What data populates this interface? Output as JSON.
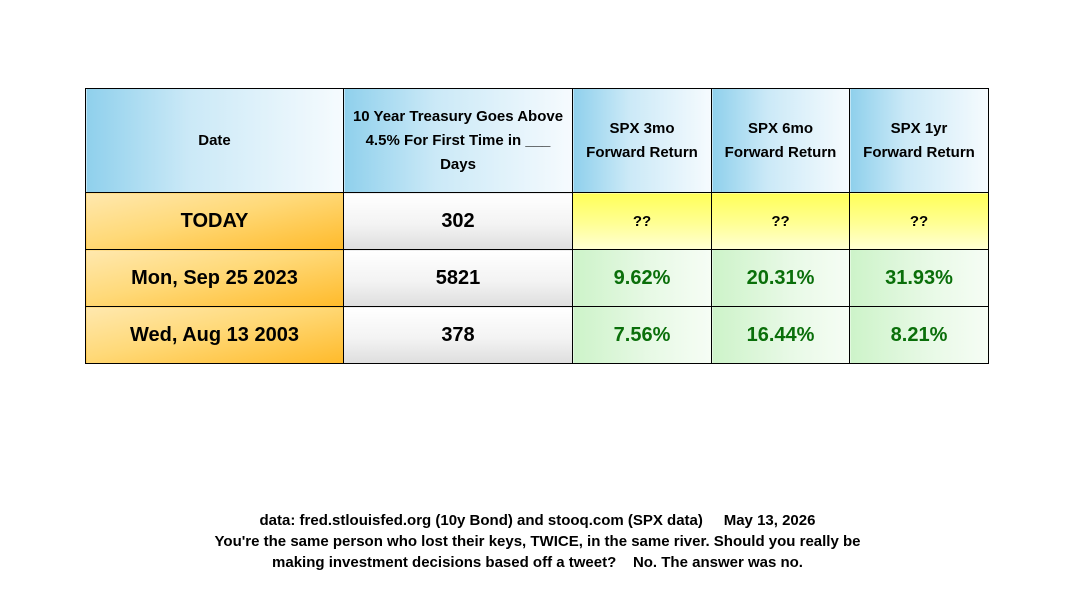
{
  "table": {
    "headers": [
      "Date",
      "10 Year Treasury Goes Above 4.5% For First Time in ___ Days",
      "SPX 3mo Forward Return",
      "SPX 6mo Forward Return",
      "SPX 1yr Forward Return"
    ],
    "rows": [
      {
        "date": "TODAY",
        "days": "302",
        "ret_3mo": "??",
        "ret_6mo": "??",
        "ret_1yr": "??"
      },
      {
        "date": "Mon, Sep 25 2023",
        "days": "5821",
        "ret_3mo": "9.62%",
        "ret_6mo": "20.31%",
        "ret_1yr": "31.93%"
      },
      {
        "date": "Wed, Aug 13 2003",
        "days": "378",
        "ret_3mo": "7.56%",
        "ret_6mo": "16.44%",
        "ret_1yr": "8.21%"
      }
    ]
  },
  "footer": {
    "line1": "data: fred.stlouisfed.org (10y Bond) and stooq.com (SPX data)     May 13, 2026",
    "line2": "You're the same person who lost their keys, TWICE, in the same river. Should you really be",
    "line3": "making investment decisions based off a tweet?    No. The answer was no."
  },
  "colors": {
    "header_blue": "#8fd0ec",
    "date_orange": "#ffba2a",
    "pending_yellow": "#ffff58",
    "return_green_bg": "#cdf3c9",
    "return_green_text": "#0a6f0a"
  }
}
